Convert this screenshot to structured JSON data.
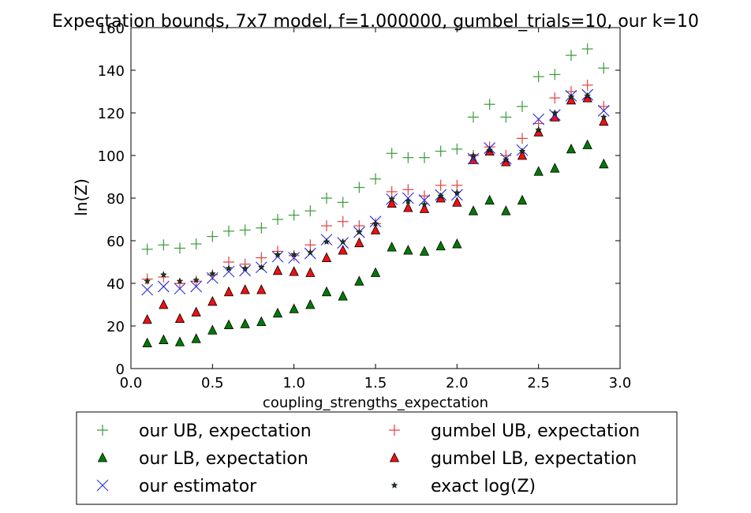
{
  "chart_data": {
    "type": "scatter",
    "title": "Expectation bounds, 7x7 model, f=1.000000, gumbel_trials=10, our k=10",
    "xlabel": "coupling_strengths_expectation",
    "ylabel": "ln(Z)",
    "xlim": [
      0.0,
      3.0
    ],
    "ylim": [
      0,
      160
    ],
    "xticks": [
      "0.0",
      "0.5",
      "1.0",
      "1.5",
      "2.0",
      "2.5",
      "3.0"
    ],
    "yticks": [
      "0",
      "20",
      "40",
      "60",
      "80",
      "100",
      "120",
      "140",
      "160"
    ],
    "grid": false,
    "legend_position": "below",
    "x": [
      0.1,
      0.2,
      0.3,
      0.4,
      0.5,
      0.6,
      0.7,
      0.8,
      0.9,
      1.0,
      1.1,
      1.2,
      1.3,
      1.4,
      1.5,
      1.6,
      1.7,
      1.8,
      1.9,
      2.0,
      2.1,
      2.2,
      2.3,
      2.4,
      2.5,
      2.6,
      2.7,
      2.8,
      2.9
    ],
    "series": [
      {
        "name": "our UB, expectation",
        "marker": "plus",
        "color": "#3a9a3a",
        "values": [
          56,
          58,
          56.5,
          58.5,
          62,
          64.5,
          65,
          66,
          70,
          72,
          74,
          80,
          78,
          85,
          89,
          101,
          99,
          99,
          102,
          103,
          118,
          124,
          118,
          123,
          137,
          138,
          147,
          150,
          141
        ]
      },
      {
        "name": "gumbel UB, expectation",
        "marker": "plus",
        "color": "#e04040",
        "values": [
          42,
          43,
          40,
          41,
          44,
          50,
          49,
          52,
          55,
          53,
          58,
          67,
          69,
          67,
          68,
          83,
          84,
          81,
          86,
          86,
          100,
          104,
          100,
          108,
          115,
          127,
          130,
          133,
          123
        ]
      },
      {
        "name": "our LB, expectation",
        "marker": "triangle",
        "color": "#007a00",
        "values": [
          12,
          13.5,
          12.5,
          14,
          18,
          20.5,
          21,
          22,
          26,
          28,
          30,
          36,
          34,
          41,
          45,
          57,
          55.5,
          55,
          57.5,
          58.5,
          74,
          79,
          74,
          79,
          92.5,
          94,
          103,
          105,
          96
        ]
      },
      {
        "name": "gumbel LB, expectation",
        "marker": "triangle",
        "color": "#ee1111",
        "values": [
          23,
          30,
          23.5,
          26.5,
          31.5,
          36,
          37,
          37,
          46,
          45.5,
          45,
          52,
          55.5,
          59,
          65,
          77.5,
          75.5,
          75,
          80,
          78,
          98,
          102,
          97,
          100,
          111,
          118,
          126,
          127,
          116
        ]
      },
      {
        "name": "our estimator",
        "marker": "x",
        "color": "#2a2adf",
        "values": [
          37,
          38.5,
          37.5,
          38.5,
          42.5,
          45.5,
          46,
          47.5,
          52.5,
          52,
          54,
          60.5,
          59,
          64,
          69,
          79.5,
          80,
          79,
          81.5,
          81.5,
          98.5,
          103.5,
          98.5,
          102.5,
          117,
          119,
          128,
          128.5,
          121
        ]
      },
      {
        "name": "exact log(Z)",
        "marker": "star",
        "color": "#000000",
        "values": [
          41,
          44,
          41,
          41.5,
          44.5,
          47,
          47,
          47.5,
          53.5,
          53.5,
          54.5,
          59.5,
          59.5,
          64,
          68,
          79.5,
          78.5,
          77,
          81,
          82.5,
          100,
          102.5,
          98,
          102,
          112,
          120,
          127.5,
          128,
          118
        ]
      }
    ]
  },
  "legend": {
    "items": [
      {
        "label": "our UB, expectation",
        "series": 0
      },
      {
        "label": "gumbel UB, expectation",
        "series": 1
      },
      {
        "label": "our LB, expectation",
        "series": 2
      },
      {
        "label": "gumbel LB, expectation",
        "series": 3
      },
      {
        "label": "our estimator",
        "series": 4
      },
      {
        "label": "exact log(Z)",
        "series": 5
      }
    ]
  }
}
